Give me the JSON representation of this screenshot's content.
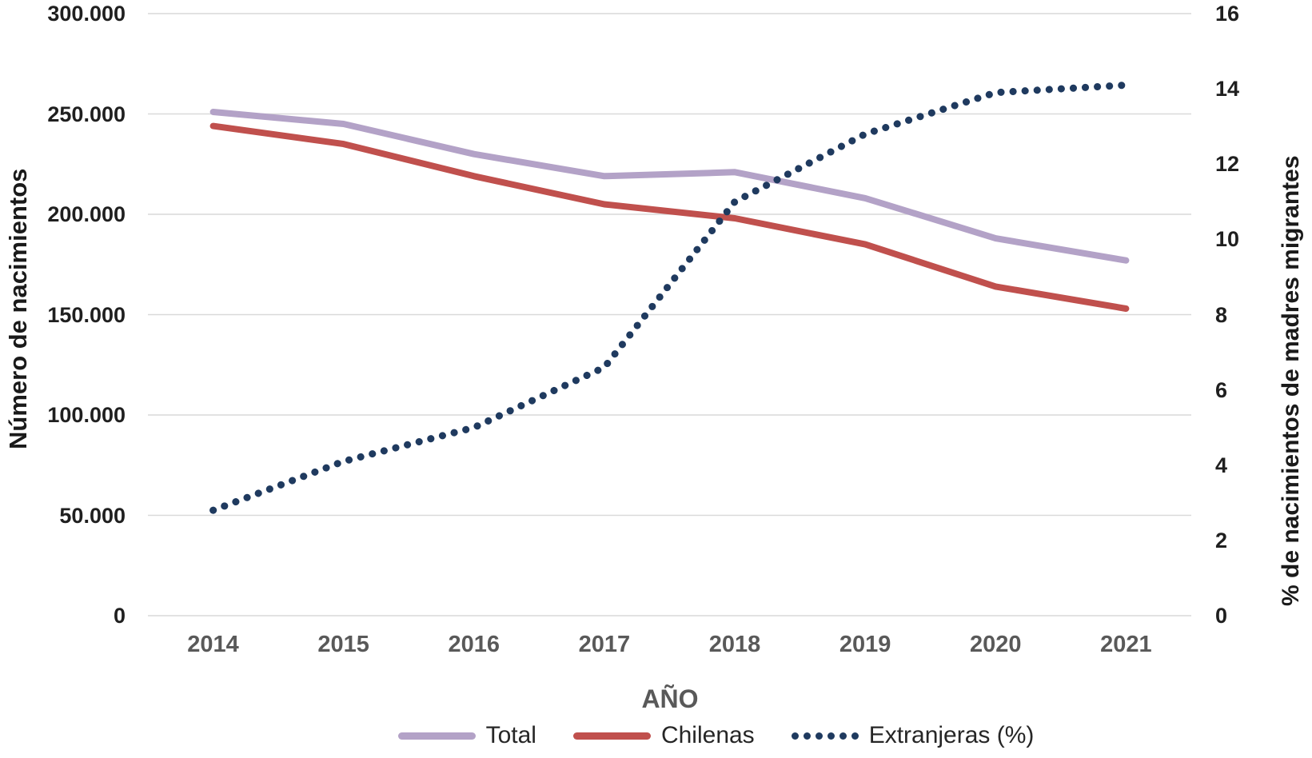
{
  "colors": {
    "background": "#ffffff",
    "gridline": "#d9d9d9",
    "tick_text": "#1f1f1f",
    "x_tick_text": "#595959",
    "axis_title_text": "#1a1a1a",
    "legend_text": "#262626"
  },
  "chart_data": {
    "type": "line",
    "title": "",
    "x_label": "AÑO",
    "categories": [
      "2014",
      "2015",
      "2016",
      "2017",
      "2018",
      "2019",
      "2020",
      "2021"
    ],
    "grid": "horizontal",
    "legend_position": "bottom",
    "left_axis": {
      "label": "Número de nacimientos",
      "min": 0,
      "max": 300000,
      "tick_values": [
        0,
        50000,
        100000,
        150000,
        200000,
        250000,
        300000
      ],
      "tick_labels": [
        "0",
        "50.000",
        "100.000",
        "150.000",
        "200.000",
        "250.000",
        "300.000"
      ]
    },
    "right_axis": {
      "label": "% de nacimientos de madres migrantes",
      "min": 0,
      "max": 16,
      "tick_values": [
        0,
        2,
        4,
        6,
        8,
        10,
        12,
        14,
        16
      ],
      "tick_labels": [
        "0",
        "2",
        "4",
        "6",
        "8",
        "10",
        "12",
        "14",
        "16"
      ]
    },
    "series": [
      {
        "id": "total",
        "name": "Total",
        "axis": "left",
        "style": "solid",
        "color": "#b3a2c7",
        "values": [
          251000,
          245000,
          230000,
          219000,
          221000,
          208000,
          188000,
          177000
        ]
      },
      {
        "id": "chilenas",
        "name": "Chilenas",
        "axis": "left",
        "style": "solid",
        "color": "#c0504d",
        "values": [
          244000,
          235000,
          219000,
          205000,
          198000,
          185000,
          164000,
          153000
        ]
      },
      {
        "id": "extranjeras",
        "name": "Extranjeras (%)",
        "axis": "right",
        "style": "dotted",
        "color": "#1f3a5f",
        "values": [
          2.8,
          4.1,
          5.0,
          6.6,
          11.0,
          12.8,
          13.9,
          14.1
        ]
      }
    ]
  }
}
